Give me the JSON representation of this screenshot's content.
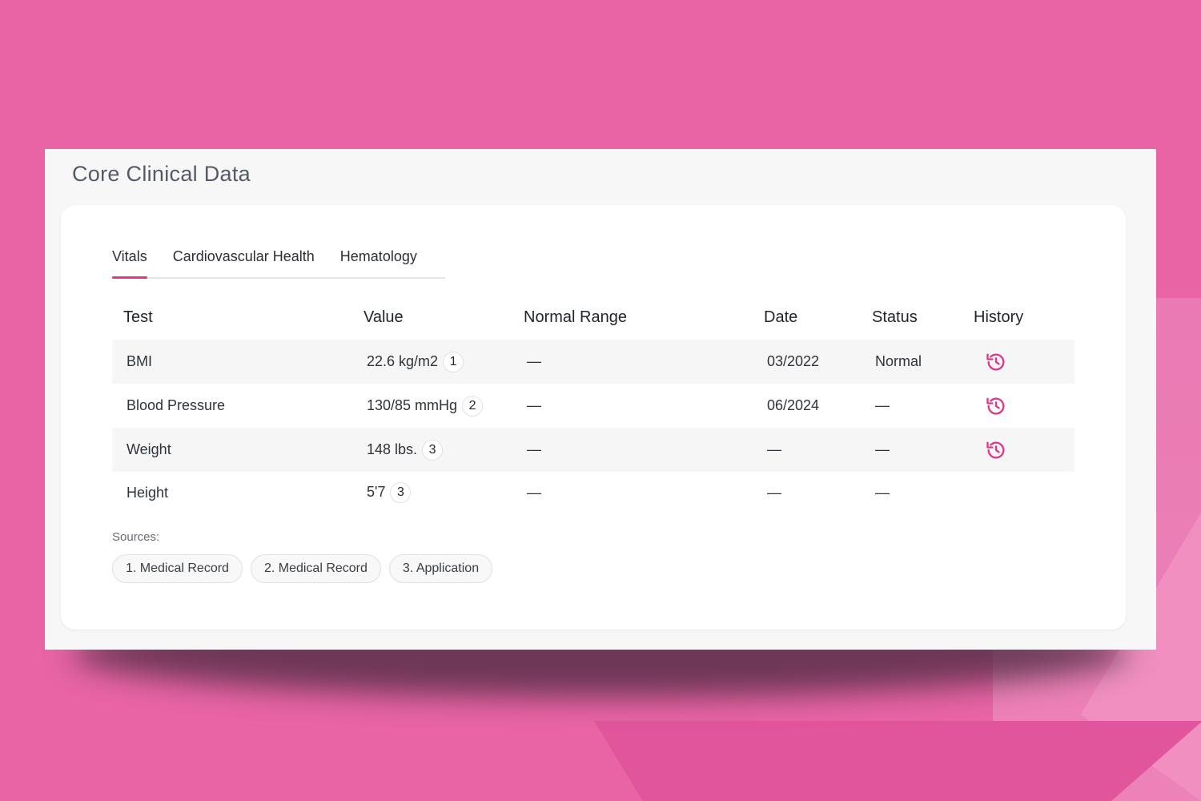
{
  "header": {
    "title": "Core Clinical Data"
  },
  "tabs": [
    {
      "label": "Vitals",
      "active": true
    },
    {
      "label": "Cardiovascular Health",
      "active": false
    },
    {
      "label": "Hematology",
      "active": false
    }
  ],
  "table": {
    "columns": [
      "Test",
      "Value",
      "Normal Range",
      "Date",
      "Status",
      "History"
    ],
    "rows": [
      {
        "test": "BMI",
        "value": "22.6 kg/m2",
        "source": "1",
        "normal_range": "—",
        "date": "03/2022",
        "status": "Normal",
        "history_icon": "history-icon"
      },
      {
        "test": "Blood Pressure",
        "value": "130/85 mmHg",
        "source": "2",
        "normal_range": "—",
        "date": "06/2024",
        "status": "—",
        "history_icon": "history-icon"
      },
      {
        "test": "Weight",
        "value": "148 lbs.",
        "source": "3",
        "normal_range": "—",
        "date": "—",
        "status": "—",
        "history_icon": "history-icon"
      },
      {
        "test": "Height",
        "value": "5'7",
        "source": "3",
        "normal_range": "—",
        "date": "—",
        "status": "—",
        "history_icon": null
      }
    ]
  },
  "sources": {
    "label": "Sources:",
    "items": [
      "1. Medical Record",
      "2. Medical Record",
      "3. Application"
    ]
  },
  "colors": {
    "background": "#e864a5",
    "accent": "#e0378a"
  }
}
